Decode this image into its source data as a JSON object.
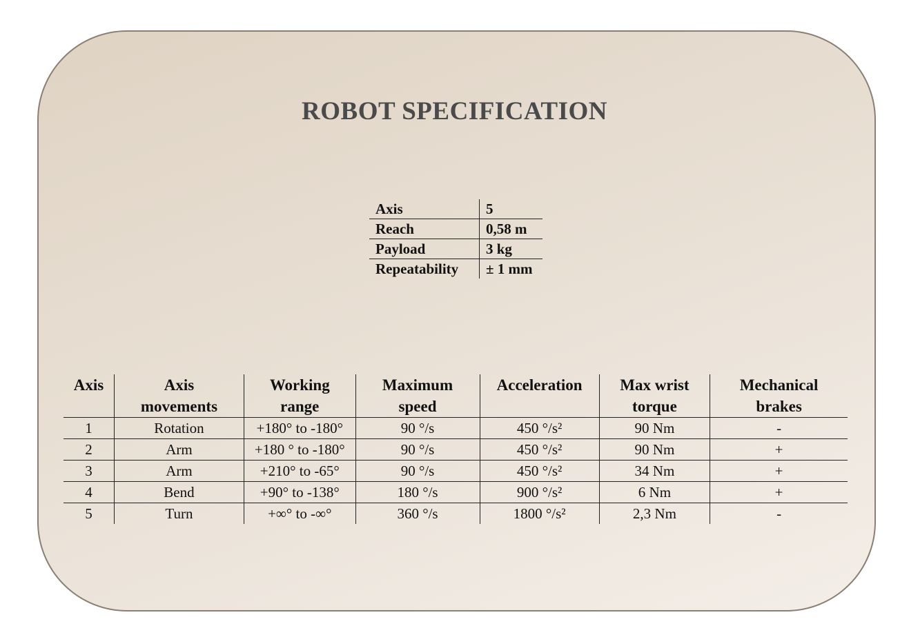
{
  "title": "ROBOT SPECIFICATION",
  "summary": [
    {
      "label": "Axis",
      "value": "5"
    },
    {
      "label": "Reach",
      "value": "0,58 m"
    },
    {
      "label": "Payload",
      "value": "3 kg"
    },
    {
      "label": "Repeatability",
      "value": "± 1 mm"
    }
  ],
  "spec_table": {
    "headers": [
      [
        "Axis",
        ""
      ],
      [
        "Axis",
        "movements"
      ],
      [
        "Working",
        "range"
      ],
      [
        "Maximum",
        "speed"
      ],
      [
        "Acceleration",
        ""
      ],
      [
        "Max wrist",
        "torque"
      ],
      [
        "Mechanical",
        "brakes"
      ]
    ],
    "rows": [
      [
        "1",
        "Rotation",
        "+180° to -180°",
        "90 °/s",
        "450 °/s²",
        "90 Nm",
        "-"
      ],
      [
        "2",
        "Arm",
        "+180 ° to -180°",
        "90 °/s",
        "450 °/s²",
        "90 Nm",
        "+"
      ],
      [
        "3",
        "Arm",
        "+210° to -65°",
        "90 °/s",
        "450 °/s²",
        "34 Nm",
        "+"
      ],
      [
        "4",
        "Bend",
        "+90° to -138°",
        "180 °/s",
        "900 °/s²",
        "6 Nm",
        "+"
      ],
      [
        "5",
        "Turn",
        "+∞° to -∞°",
        "360 °/s",
        "1800 °/s²",
        "2,3 Nm",
        "-"
      ]
    ]
  }
}
